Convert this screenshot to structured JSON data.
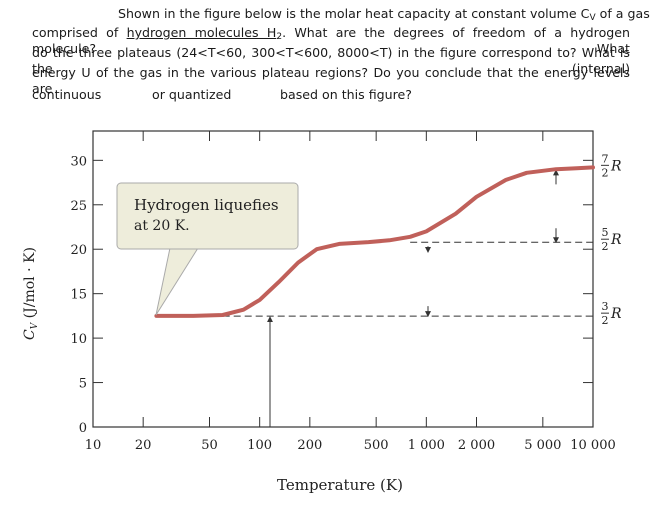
{
  "question": {
    "line1": [
      "Shown in the figure below is the molar heat capacity at constant volume C",
      "V",
      " of a gas"
    ],
    "line2": [
      "comprised of ",
      "hydrogen molecules H",
      "2",
      ". What are the degrees of freedom of a hydrogen molecule? What"
    ],
    "line3": "do the three plateaus (24<T<60, 300<T<600, 8000<T) in the figure correspond to? What is the (internal)",
    "line4": "energy U of the gas in the various plateau regions? Do you conclude that the energy levels are",
    "line5": [
      "continuous",
      "or quantized",
      "based on this figure?"
    ]
  },
  "chart_data": {
    "type": "line",
    "log_x": true,
    "x_label": "Temperature (K)",
    "y_label": [
      "C",
      "V",
      " (J/mol · K)"
    ],
    "xlim": [
      10,
      10000
    ],
    "ylim": [
      0,
      33.3
    ],
    "xticks": [
      10,
      20,
      50,
      100,
      200,
      500,
      {
        "value": 1000,
        "label": "1 000"
      },
      {
        "value": 2000,
        "label": "2 000"
      },
      {
        "value": 5000,
        "label": "5 000"
      },
      {
        "value": 10000,
        "label": "10 000"
      }
    ],
    "yticks": [
      0,
      5,
      10,
      15,
      20,
      25,
      30
    ],
    "series": [
      {
        "name": "H2",
        "color": "#c0605a",
        "x": [
          24,
          40,
          60,
          80,
          100,
          130,
          170,
          220,
          300,
          450,
          600,
          800,
          1000,
          1500,
          2000,
          3000,
          4000,
          6000,
          8000,
          10000
        ],
        "values": [
          12.5,
          12.5,
          12.6,
          13.2,
          14.3,
          16.3,
          18.5,
          20.0,
          20.6,
          20.8,
          21.0,
          21.4,
          22.0,
          24.0,
          25.9,
          27.8,
          28.6,
          29.0,
          29.1,
          29.2
        ]
      }
    ],
    "levels": [
      {
        "value": 12.47,
        "num": "3",
        "den": "2",
        "symbol": "R"
      },
      {
        "value": 20.79,
        "num": "5",
        "den": "2",
        "symbol": "R"
      },
      {
        "value": 29.1,
        "num": "7",
        "den": "2",
        "symbol": "R"
      }
    ],
    "annotation": [
      "Hydrogen liquefies",
      "at 20 K."
    ]
  }
}
